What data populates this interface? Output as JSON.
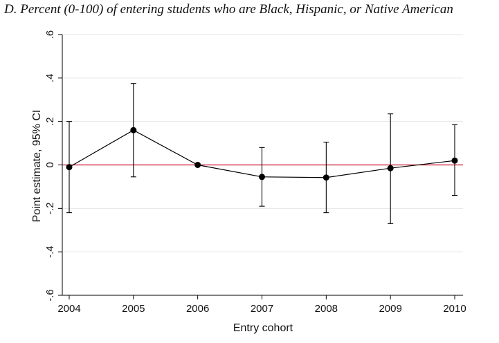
{
  "chart_data": {
    "type": "line",
    "title": "D. Percent (0-100) of entering students who are Black, Hispanic, or Native American",
    "xlabel": "Entry cohort",
    "ylabel": "Point estimate, 95% CI",
    "categories": [
      "2004",
      "2005",
      "2006",
      "2007",
      "2008",
      "2009",
      "2010"
    ],
    "series": [
      {
        "values": [
          -0.01,
          0.16,
          0.0,
          -0.055,
          -0.058,
          -0.015,
          0.02
        ],
        "ci_low": [
          -0.22,
          -0.055,
          null,
          -0.19,
          -0.22,
          -0.27,
          -0.14
        ],
        "ci_high": [
          0.2,
          0.375,
          null,
          0.08,
          0.105,
          0.235,
          0.185
        ]
      }
    ],
    "ylim": [
      -0.6,
      0.6
    ],
    "yticks": [
      {
        "value": -0.6,
        "label": "-.6"
      },
      {
        "value": -0.4,
        "label": "-.4"
      },
      {
        "value": -0.2,
        "label": "-.2"
      },
      {
        "value": 0.0,
        "label": "0"
      },
      {
        "value": 0.2,
        "label": ".2"
      },
      {
        "value": 0.4,
        "label": ".4"
      },
      {
        "value": 0.6,
        "label": ".6"
      }
    ],
    "reference_line": {
      "value": 0,
      "color": "#c8102e"
    },
    "grid": true,
    "colors": {
      "series": "#000000",
      "grid": "#e6e6e6",
      "axis": "#000000"
    }
  }
}
